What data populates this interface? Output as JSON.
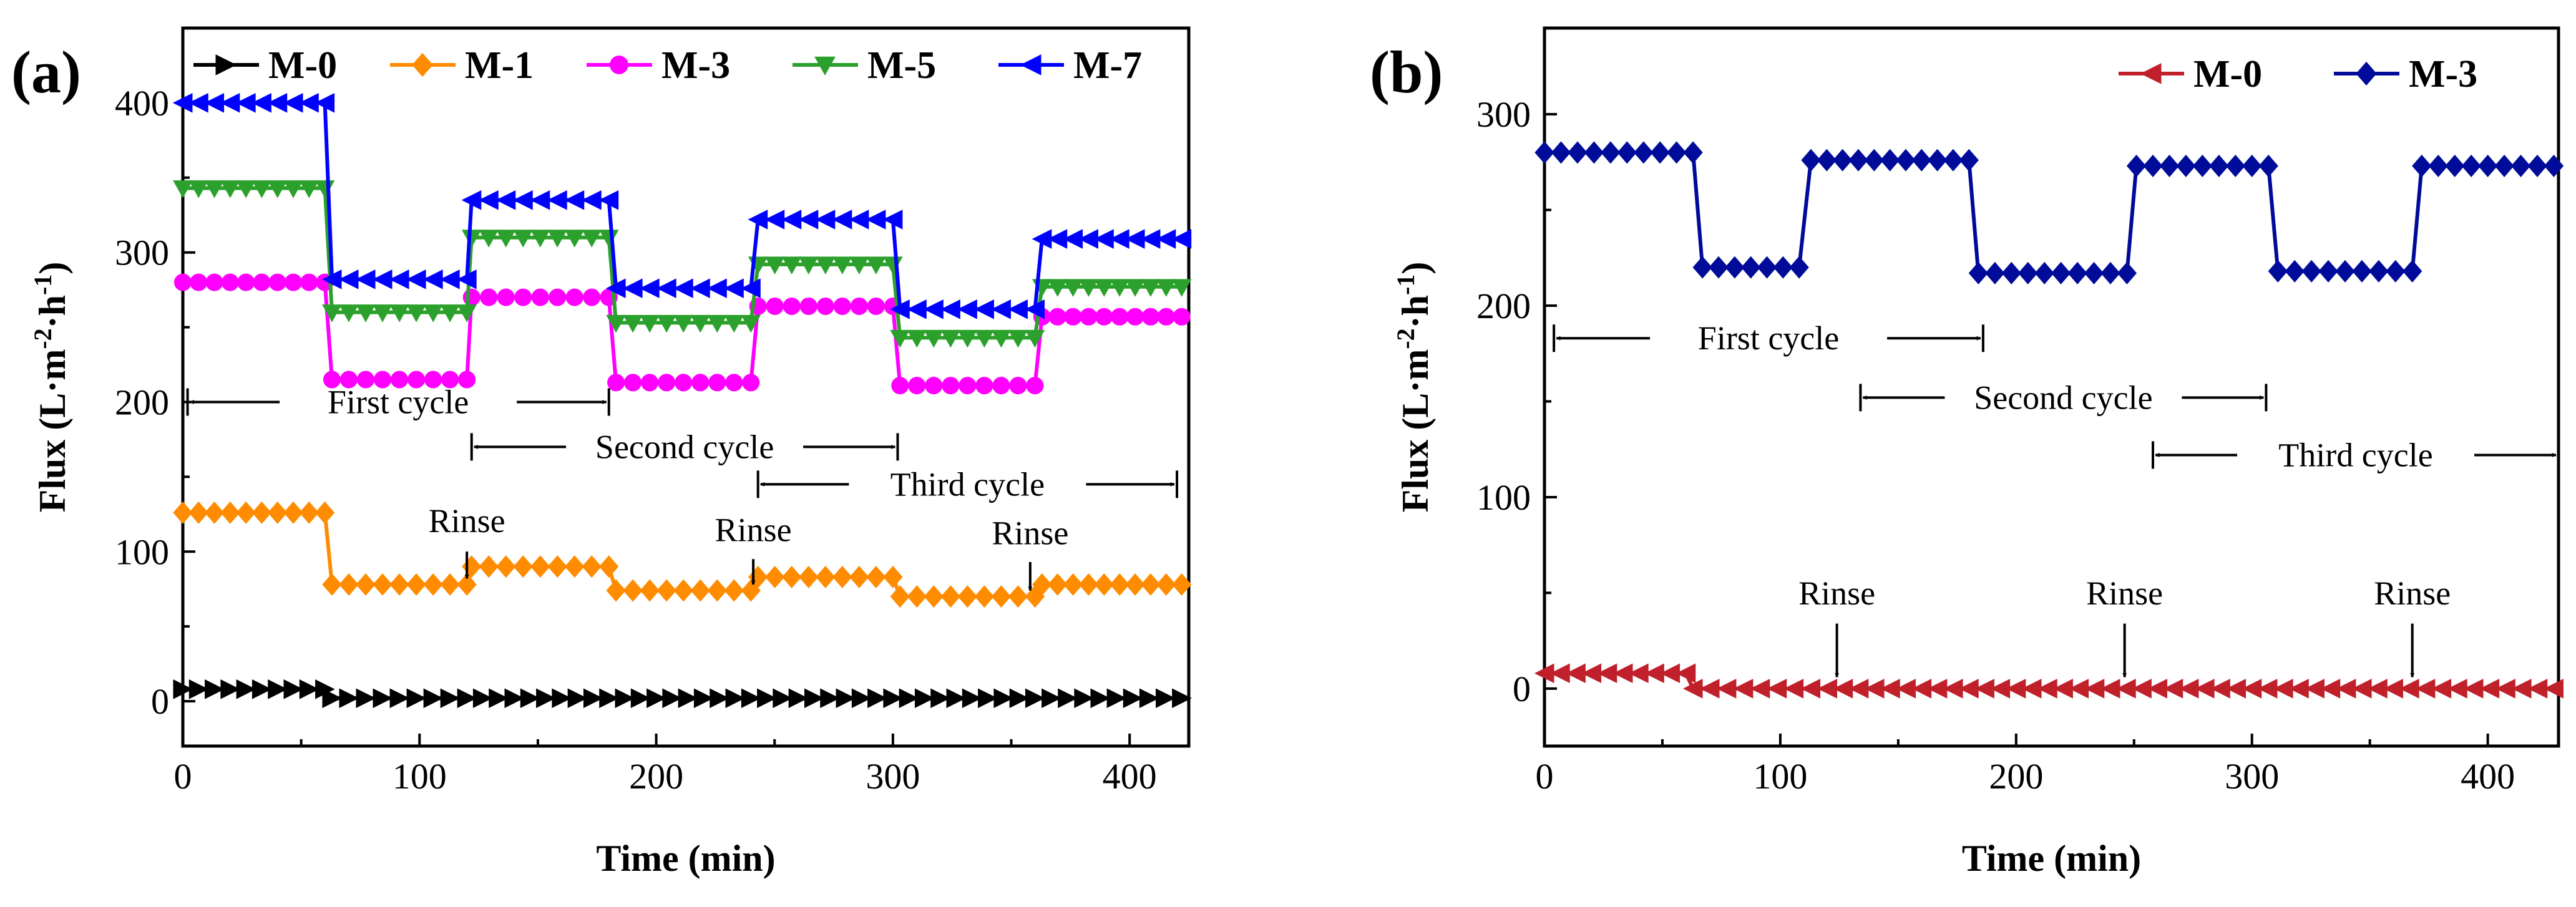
{
  "chart_data": [
    {
      "panel": "(a)",
      "type": "line",
      "xlabel": "Time (min)",
      "ylabel": "Flux (L·m-2·h-1)",
      "ylabel_parts": {
        "main": "Flux (L·m",
        "sup1": "-2",
        "mid": "·h",
        "sup2": "-1",
        "end": ")"
      },
      "xlim": [
        0,
        425
      ],
      "ylim": [
        -30,
        450
      ],
      "xticks": [
        0,
        100,
        200,
        300,
        400
      ],
      "yticks": [
        0,
        100,
        200,
        300,
        400
      ],
      "legend_position": "top",
      "series": [
        {
          "name": "M-0",
          "color": "#000000",
          "marker": "triangle-right",
          "points": [
            [
              0,
              8
            ],
            [
              60,
              8
            ],
            [
              63,
              2
            ],
            [
              120,
              2
            ],
            [
              180,
              2
            ],
            [
              240,
              2
            ],
            [
              300,
              2
            ],
            [
              360,
              2
            ],
            [
              422,
              2
            ]
          ]
        },
        {
          "name": "M-1",
          "color": "#FF8C00",
          "marker": "diamond",
          "points": [
            [
              0,
              126
            ],
            [
              60,
              126
            ],
            [
              63,
              78
            ],
            [
              120,
              78
            ],
            [
              122,
              90
            ],
            [
              180,
              90
            ],
            [
              183,
              74
            ],
            [
              240,
              74
            ],
            [
              243,
              83
            ],
            [
              300,
              83
            ],
            [
              303,
              70
            ],
            [
              360,
              70
            ],
            [
              363,
              78
            ],
            [
              422,
              78
            ]
          ]
        },
        {
          "name": "M-3",
          "color": "#FF00FF",
          "marker": "circle",
          "points": [
            [
              0,
              280
            ],
            [
              60,
              280
            ],
            [
              63,
              215
            ],
            [
              120,
              215
            ],
            [
              122,
              270
            ],
            [
              180,
              270
            ],
            [
              183,
              213
            ],
            [
              240,
              213
            ],
            [
              243,
              264
            ],
            [
              300,
              264
            ],
            [
              303,
              211
            ],
            [
              360,
              211
            ],
            [
              363,
              257
            ],
            [
              422,
              257
            ]
          ]
        },
        {
          "name": "M-5",
          "color": "#2CA02C",
          "marker": "triangle-down",
          "points": [
            [
              0,
              343
            ],
            [
              60,
              343
            ],
            [
              63,
              260
            ],
            [
              120,
              260
            ],
            [
              122,
              310
            ],
            [
              180,
              310
            ],
            [
              183,
              253
            ],
            [
              240,
              253
            ],
            [
              243,
              292
            ],
            [
              300,
              292
            ],
            [
              303,
              243
            ],
            [
              360,
              243
            ],
            [
              363,
              277
            ],
            [
              422,
              277
            ]
          ]
        },
        {
          "name": "M-7",
          "color": "#0000FF",
          "marker": "triangle-left",
          "points": [
            [
              0,
              400
            ],
            [
              60,
              400
            ],
            [
              63,
              282
            ],
            [
              120,
              282
            ],
            [
              122,
              335
            ],
            [
              180,
              335
            ],
            [
              183,
              276
            ],
            [
              240,
              276
            ],
            [
              243,
              322
            ],
            [
              300,
              322
            ],
            [
              303,
              262
            ],
            [
              360,
              262
            ],
            [
              363,
              309
            ],
            [
              422,
              309
            ]
          ]
        }
      ],
      "annotations": {
        "cycles": [
          {
            "label": "First cycle",
            "x1": 2,
            "x2": 180,
            "y": 200
          },
          {
            "label": "Second cycle",
            "x1": 122,
            "x2": 302,
            "y": 170
          },
          {
            "label": "Third cycle",
            "x1": 243,
            "x2": 420,
            "y": 145
          }
        ],
        "rinses": [
          {
            "label": "Rinse",
            "x": 120,
            "y_text": 113,
            "y_arrow_top": 100,
            "y_arrow_bottom": 82
          },
          {
            "label": "Rinse",
            "x": 241,
            "y_text": 107,
            "y_arrow_top": 95,
            "y_arrow_bottom": 78
          },
          {
            "label": "Rinse",
            "x": 358,
            "y_text": 105,
            "y_arrow_top": 93,
            "y_arrow_bottom": 74
          }
        ]
      }
    },
    {
      "panel": "(b)",
      "type": "line",
      "xlabel": "Time (min)",
      "ylabel": "Flux (L·m-2·h-1)",
      "ylabel_parts": {
        "main": "Flux (L·m",
        "sup1": "-2",
        "mid": "·h",
        "sup2": "-1",
        "end": ")"
      },
      "xlim": [
        0,
        430
      ],
      "ylim": [
        -30,
        345
      ],
      "xticks": [
        0,
        100,
        200,
        300,
        400
      ],
      "yticks": [
        0,
        100,
        200,
        300
      ],
      "legend_position": "top-right",
      "series": [
        {
          "name": "M-0",
          "color": "#C0202A",
          "marker": "triangle-left",
          "points": [
            [
              0,
              8
            ],
            [
              60,
              8
            ],
            [
              63,
              0
            ],
            [
              120,
              0
            ],
            [
              180,
              0
            ],
            [
              240,
              0
            ],
            [
              300,
              0
            ],
            [
              360,
              0
            ],
            [
              428,
              0
            ]
          ]
        },
        {
          "name": "M-3",
          "color": "#000C99",
          "marker": "diamond",
          "points": [
            [
              0,
              280
            ],
            [
              63,
              280
            ],
            [
              67,
              220
            ],
            [
              108,
              220
            ],
            [
              113,
              276
            ],
            [
              180,
              276
            ],
            [
              184,
              217
            ],
            [
              247,
              217
            ],
            [
              251,
              273
            ],
            [
              307,
              273
            ],
            [
              311,
              218
            ],
            [
              368,
              218
            ],
            [
              372,
              273
            ],
            [
              428,
              273
            ]
          ]
        }
      ],
      "annotations": {
        "cycles": [
          {
            "label": "First cycle",
            "x1": 4,
            "x2": 186,
            "y": 183
          },
          {
            "label": "Second cycle",
            "x1": 134,
            "x2": 306,
            "y": 152
          },
          {
            "label": "Third cycle",
            "x1": 258,
            "x2": 430,
            "y": 122
          }
        ],
        "rinses": [
          {
            "label": "Rinse",
            "x": 124,
            "y_text": 44,
            "y_arrow_top": 34,
            "y_arrow_bottom": 6
          },
          {
            "label": "Rinse",
            "x": 246,
            "y_text": 44,
            "y_arrow_top": 34,
            "y_arrow_bottom": 6
          },
          {
            "label": "Rinse",
            "x": 368,
            "y_text": 44,
            "y_arrow_top": 34,
            "y_arrow_bottom": 6
          }
        ]
      }
    }
  ]
}
